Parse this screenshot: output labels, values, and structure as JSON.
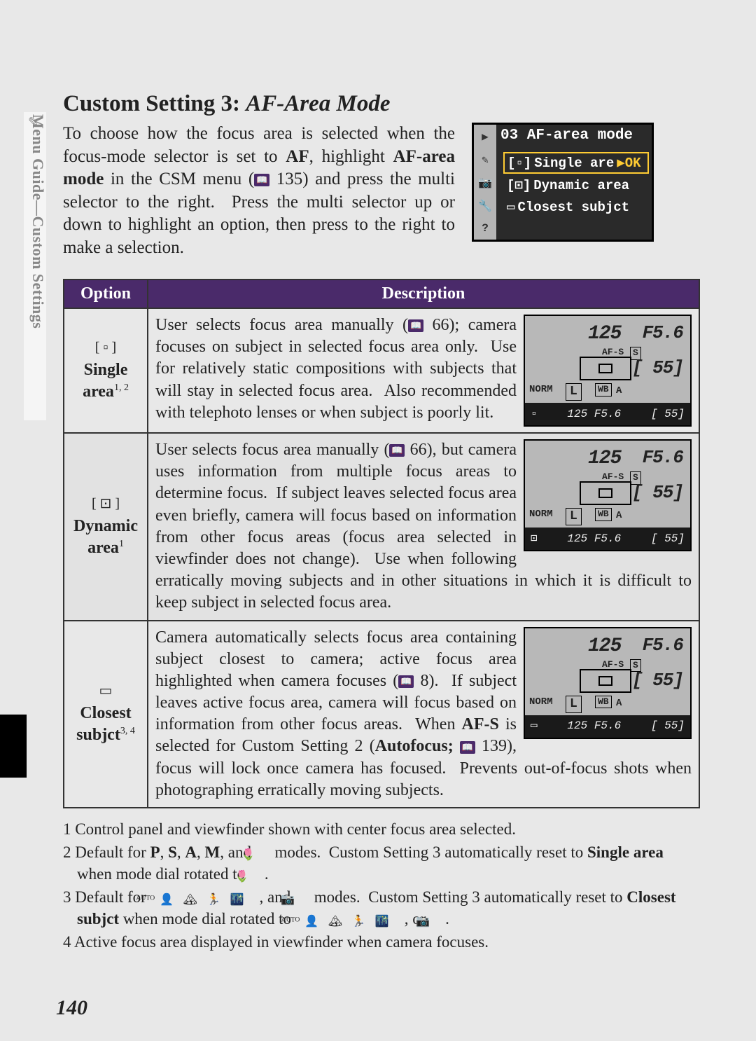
{
  "sidebar": {
    "label": "Menu Guide—Custom Settings",
    "icon": "✎"
  },
  "heading": {
    "prefix": "Custom Setting 3: ",
    "title": "AF-Area Mode"
  },
  "intro": "To choose how the focus area is selected when the focus-mode selector is set to AF, highlight AF-area mode in the CSM menu (📖 135) and press the multi selector to the right.  Press the multi selector up or down to highlight an option, then press to the right to make a selection.",
  "menu_lcd": {
    "title": "03 AF-area mode",
    "side_icons": [
      "▶",
      "✎",
      "📷",
      "🔧",
      "?"
    ],
    "items": [
      {
        "icon": "[▫]",
        "label": "Single are",
        "tail": "▶OK",
        "selected": true
      },
      {
        "icon": "[⊡]",
        "label": "Dynamic area",
        "selected": false
      },
      {
        "icon": "▭",
        "label": "Closest subjct",
        "selected": false
      }
    ],
    "colors": {
      "bg": "#2a2a2a",
      "highlight": "#ffcc33",
      "side": "#b5b5b5"
    }
  },
  "table": {
    "headers": {
      "option": "Option",
      "description": "Description"
    },
    "header_bg": "#4a2a6a",
    "header_fg": "#ffffff",
    "rows": [
      {
        "id": "single",
        "icon": "[ ▫ ]",
        "label": "Single area",
        "sup": "1, 2",
        "gray": false,
        "desc": "User selects focus area manually (📖 66); camera focuses on subject in selected focus area only.  Use for relatively static compositions with subjects that will stay in selected focus area.  Also recommended with telephoto lenses or when subject is poorly lit."
      },
      {
        "id": "dynamic",
        "icon": "[ ⊡ ]",
        "label": "Dynamic area",
        "sup": "1",
        "gray": true,
        "desc": "User selects focus area manually (📖 66), but camera uses information from multiple focus areas to determine focus.  If subject leaves selected focus area even briefly, camera will focus based on information from other focus areas (focus area selected in viewfinder does not change).  Use when following erratically moving subjects and in other situations in which it is difficult to keep subject in selected focus area."
      },
      {
        "id": "closest",
        "icon": "▭",
        "label": "Closest subjct",
        "sup": "3, 4",
        "gray": false,
        "desc": "Camera automatically selects focus area containing subject closest to camera; active focus area highlighted when camera focuses (📖 8).  If subject leaves active focus area, camera will focus based on information from other focus areas.  When AF-S is selected for Custom Setting 2 (Autofocus; 📖 139), focus will lock once camera has focused.  Prevents out-of-focus shots when photographing erratically moving subjects."
      }
    ]
  },
  "lcd_display": {
    "shutter": "125",
    "aperture": "F5.6",
    "afs": "AF-S",
    "s_indicator": "S",
    "count": "[  55]",
    "norm": "NORM",
    "size": "L",
    "wb": "WB",
    "wba": "A",
    "bottom_left": "125 ",
    "bottom_mid": "F5.6",
    "bottom_right": "[ 55]",
    "colors": {
      "top_bg": "#b8b8b8",
      "bottom_bg": "#1a1a1a",
      "border": "#000000"
    }
  },
  "footnotes": [
    "1 Control panel and viewfinder shown with center focus area selected.",
    "2 Default for P, S, A, M, and 🌷 modes.  Custom Setting 3 automatically reset to Single area when mode dial rotated to 🌷.",
    "3 Default for AUTO, 👤, 🏔, 🏃, 🌃, and 📷 modes.  Custom Setting 3 automatically reset to Closest subjct when mode dial rotated to AUTO, 👤, 🏔, 🏃, 🌃, or 📷.",
    "4 Active focus area displayed in viewfinder when camera focuses."
  ],
  "page_number": "140"
}
